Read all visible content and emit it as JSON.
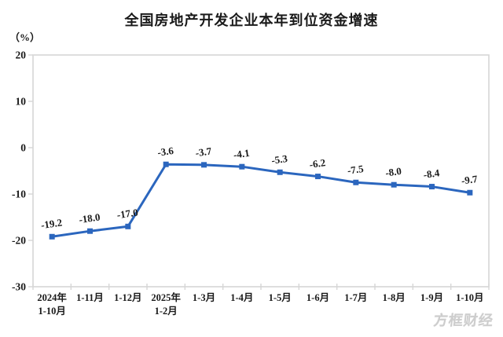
{
  "title": "全国房地产开发企业本年到位资金增速",
  "unit_label": "（%）",
  "watermark": "方框财经",
  "colors": {
    "line": "#2b66be",
    "marker": "#2b66be",
    "axis": "#d6d6d6",
    "text": "#1a1a1a",
    "watermark": "#cdcdcd",
    "background": "#ffffff"
  },
  "chart_data": {
    "type": "line",
    "title": "全国房地产开发企业本年到位资金增速",
    "ylabel": "（%）",
    "xlabel": "",
    "categories": [
      [
        "2024年",
        "1-10月"
      ],
      [
        "1-11月"
      ],
      [
        "1-12月"
      ],
      [
        "2025年",
        "1-2月"
      ],
      [
        "1-3月"
      ],
      [
        "1-4月"
      ],
      [
        "1-5月"
      ],
      [
        "1-6月"
      ],
      [
        "1-7月"
      ],
      [
        "1-8月"
      ],
      [
        "1-9月"
      ],
      [
        "1-10月"
      ]
    ],
    "values": [
      -19.2,
      -18.0,
      -17.0,
      -3.6,
      -3.7,
      -4.1,
      -5.3,
      -6.2,
      -7.5,
      -8.0,
      -8.4,
      -9.7
    ],
    "point_labels": [
      "-19.2",
      "-18.0",
      "-17.0",
      "-3.6",
      "-3.7",
      "-4.1",
      "-5.3",
      "-6.2",
      "-7.5",
      "-8.0",
      "-8.4",
      "-9.7"
    ],
    "ylim": [
      -30,
      20
    ],
    "yticks": [
      20,
      10,
      0,
      -10,
      -20,
      -30
    ],
    "grid": false,
    "legend": "none",
    "marker": "square",
    "label_rotation_deg": -8
  }
}
